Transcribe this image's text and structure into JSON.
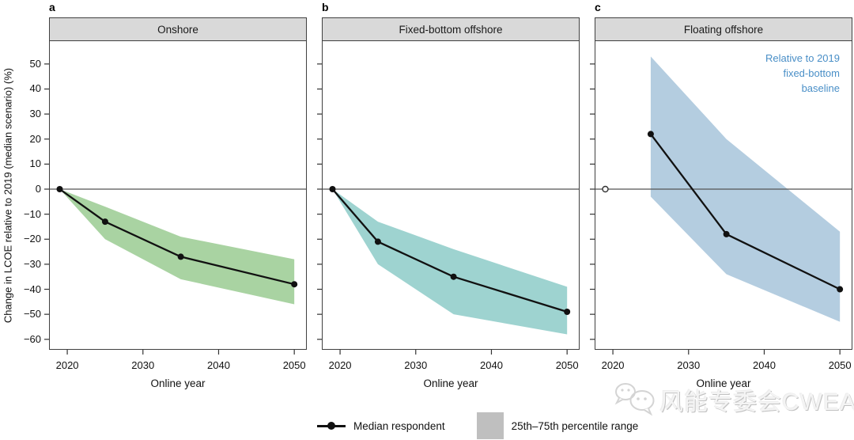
{
  "figure": {
    "y_axis_label": "Change in LCOE relative to 2019 (median scenario) (%)",
    "y_tick_labels": [
      "50",
      "40",
      "30",
      "20",
      "10",
      "0",
      "−10",
      "−20",
      "−30",
      "−40",
      "−50",
      "−60"
    ],
    "x_tick_labels": [
      "2020",
      "2030",
      "2040",
      "2050"
    ]
  },
  "legend": {
    "median_label": "Median respondent",
    "band_label": "25th–75th percentile range"
  },
  "watermark": {
    "text": "风能专委会CWEA",
    "icon": "wechat-icon"
  },
  "colors": {
    "onshore_band": "#a9d3a2",
    "fixed_band": "#9ed3d0",
    "floating_band": "#b4cde0",
    "median_line": "#111111",
    "zero_line": "#555555",
    "frame": "#404040",
    "header_bg": "#d9d9d9",
    "annotation_blue": "#4a8fc7",
    "legend_box": "#bfbfbf"
  },
  "chart_data": [
    {
      "type": "line",
      "letter": "a",
      "title": "Onshore",
      "xlabel": "Online year",
      "ylabel": "Change in LCOE relative to 2019 (median scenario) (%)",
      "units": "%",
      "xlim": [
        2017.6,
        2052
      ],
      "ylim": [
        -64,
        59
      ],
      "x": [
        2019,
        2025,
        2035,
        2050
      ],
      "median": [
        0,
        -13,
        -27,
        -38
      ],
      "band_upper": [
        0,
        -7,
        -19,
        -28
      ],
      "band_lower": [
        0,
        -20,
        -36,
        -46
      ],
      "band_color": "#a9d3a2",
      "band_meaning": "25th–75th percentile range"
    },
    {
      "type": "line",
      "letter": "b",
      "title": "Fixed-bottom offshore",
      "xlabel": "Online year",
      "units": "%",
      "xlim": [
        2017.6,
        2052
      ],
      "ylim": [
        -64,
        59
      ],
      "x": [
        2019,
        2025,
        2035,
        2050
      ],
      "median": [
        0,
        -21,
        -35,
        -49
      ],
      "band_upper": [
        0,
        -13,
        -24,
        -39
      ],
      "band_lower": [
        0,
        -30,
        -50,
        -58
      ],
      "band_color": "#9ed3d0",
      "band_meaning": "25th–75th percentile range"
    },
    {
      "type": "line",
      "letter": "c",
      "title": "Floating offshore",
      "xlabel": "Online year",
      "units": "%",
      "xlim": [
        2017.6,
        2052
      ],
      "ylim": [
        -64,
        59
      ],
      "annotation": "Relative to 2019\nfixed-bottom\nbaseline",
      "reference_point": {
        "x": 2019,
        "y": 0,
        "style": "open"
      },
      "x": [
        2025,
        2035,
        2050
      ],
      "median": [
        22,
        -18,
        -40
      ],
      "band_upper": [
        53,
        20,
        -17
      ],
      "band_lower": [
        -3,
        -34,
        -53
      ],
      "band_color": "#b4cde0",
      "band_meaning": "25th–75th percentile range"
    }
  ]
}
